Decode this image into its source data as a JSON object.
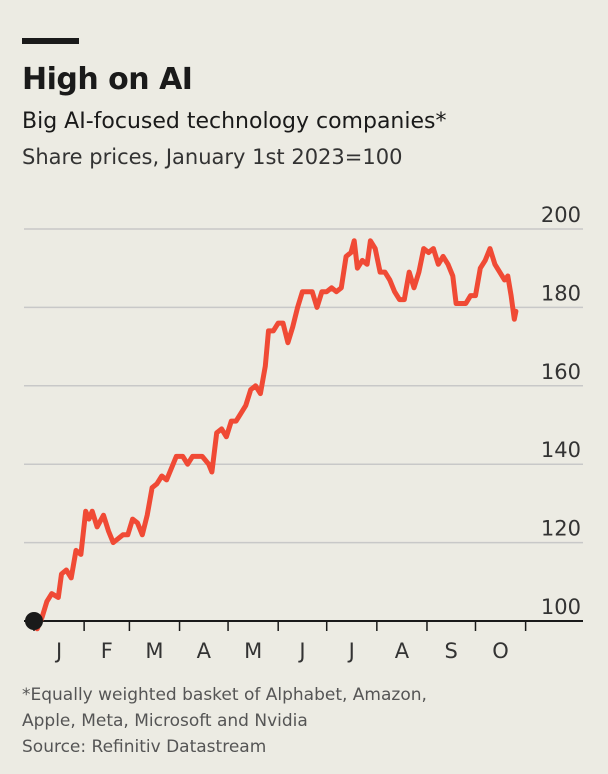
{
  "header": {
    "title": "High on AI",
    "subtitle": "Big AI-focused technology companies*",
    "unit": "Share prices, January 1st 2023=100"
  },
  "colors": {
    "background": "#ecebe3",
    "line": "#f04a35",
    "grid": "#c8c8c8",
    "axis": "#1a1a1a",
    "start_marker": "#1a1a1a"
  },
  "chart_data": {
    "type": "line",
    "title": "High on AI",
    "subtitle": "Big AI-focused technology companies*",
    "ylabel": "Share prices, January 1st 2023=100",
    "xlabel": "",
    "ylim": [
      100,
      200
    ],
    "yticks": [
      100,
      120,
      140,
      160,
      180,
      200
    ],
    "y_axis_side": "right",
    "grid": true,
    "x_range": [
      "2023-01-01",
      "2023-10-31"
    ],
    "xticks": [
      "J",
      "F",
      "M",
      "A",
      "M",
      "J",
      "J",
      "A",
      "S",
      "O"
    ],
    "series": [
      {
        "color": "#f04a35",
        "points": [
          [
            "2023-01-01",
            100
          ],
          [
            "2023-01-03",
            98
          ],
          [
            "2023-01-06",
            101
          ],
          [
            "2023-01-09",
            105
          ],
          [
            "2023-01-12",
            107
          ],
          [
            "2023-01-16",
            106
          ],
          [
            "2023-01-18",
            112
          ],
          [
            "2023-01-21",
            113
          ],
          [
            "2023-01-24",
            111
          ],
          [
            "2023-01-27",
            118
          ],
          [
            "2023-01-30",
            117
          ],
          [
            "2023-02-02",
            128
          ],
          [
            "2023-02-04",
            126
          ],
          [
            "2023-02-06",
            128
          ],
          [
            "2023-02-09",
            124
          ],
          [
            "2023-02-13",
            127
          ],
          [
            "2023-02-16",
            123
          ],
          [
            "2023-02-19",
            120
          ],
          [
            "2023-02-22",
            121
          ],
          [
            "2023-02-25",
            122
          ],
          [
            "2023-02-28",
            122
          ],
          [
            "2023-03-03",
            126
          ],
          [
            "2023-03-06",
            125
          ],
          [
            "2023-03-09",
            122
          ],
          [
            "2023-03-12",
            127
          ],
          [
            "2023-03-15",
            134
          ],
          [
            "2023-03-18",
            135
          ],
          [
            "2023-03-21",
            137
          ],
          [
            "2023-03-24",
            136
          ],
          [
            "2023-03-27",
            139
          ],
          [
            "2023-03-30",
            142
          ],
          [
            "2023-04-03",
            142
          ],
          [
            "2023-04-06",
            140
          ],
          [
            "2023-04-09",
            142
          ],
          [
            "2023-04-12",
            142
          ],
          [
            "2023-04-15",
            142
          ],
          [
            "2023-04-19",
            140
          ],
          [
            "2023-04-21",
            138
          ],
          [
            "2023-04-24",
            148
          ],
          [
            "2023-04-27",
            149
          ],
          [
            "2023-04-30",
            147
          ],
          [
            "2023-05-03",
            151
          ],
          [
            "2023-05-06",
            151
          ],
          [
            "2023-05-09",
            153
          ],
          [
            "2023-05-12",
            155
          ],
          [
            "2023-05-15",
            159
          ],
          [
            "2023-05-18",
            160
          ],
          [
            "2023-05-21",
            158
          ],
          [
            "2023-05-24",
            165
          ],
          [
            "2023-05-26",
            174
          ],
          [
            "2023-05-29",
            174
          ],
          [
            "2023-06-01",
            176
          ],
          [
            "2023-06-04",
            176
          ],
          [
            "2023-06-07",
            171
          ],
          [
            "2023-06-10",
            175
          ],
          [
            "2023-06-13",
            180
          ],
          [
            "2023-06-16",
            184
          ],
          [
            "2023-06-19",
            184
          ],
          [
            "2023-06-22",
            184
          ],
          [
            "2023-06-25",
            180
          ],
          [
            "2023-06-28",
            184
          ],
          [
            "2023-07-01",
            184
          ],
          [
            "2023-07-04",
            185
          ],
          [
            "2023-07-07",
            184
          ],
          [
            "2023-07-10",
            185
          ],
          [
            "2023-07-13",
            193
          ],
          [
            "2023-07-16",
            194
          ],
          [
            "2023-07-18",
            197
          ],
          [
            "2023-07-20",
            190
          ],
          [
            "2023-07-23",
            192
          ],
          [
            "2023-07-26",
            191
          ],
          [
            "2023-07-28",
            197
          ],
          [
            "2023-07-31",
            195
          ],
          [
            "2023-08-03",
            189
          ],
          [
            "2023-08-06",
            189
          ],
          [
            "2023-08-09",
            187
          ],
          [
            "2023-08-12",
            184
          ],
          [
            "2023-08-15",
            182
          ],
          [
            "2023-08-18",
            182
          ],
          [
            "2023-08-21",
            189
          ],
          [
            "2023-08-24",
            185
          ],
          [
            "2023-08-27",
            189
          ],
          [
            "2023-08-30",
            195
          ],
          [
            "2023-09-02",
            194
          ],
          [
            "2023-09-05",
            195
          ],
          [
            "2023-09-08",
            191
          ],
          [
            "2023-09-11",
            193
          ],
          [
            "2023-09-14",
            191
          ],
          [
            "2023-09-17",
            188
          ],
          [
            "2023-09-19",
            181
          ],
          [
            "2023-09-22",
            181
          ],
          [
            "2023-09-25",
            181
          ],
          [
            "2023-09-28",
            183
          ],
          [
            "2023-10-01",
            183
          ],
          [
            "2023-10-04",
            190
          ],
          [
            "2023-10-07",
            192
          ],
          [
            "2023-10-10",
            195
          ],
          [
            "2023-10-13",
            191
          ],
          [
            "2023-10-16",
            189
          ],
          [
            "2023-10-19",
            187
          ],
          [
            "2023-10-21",
            188
          ],
          [
            "2023-10-23",
            183
          ],
          [
            "2023-10-25",
            177
          ],
          [
            "2023-10-26",
            179
          ]
        ]
      }
    ]
  },
  "footnote": {
    "line1": "*Equally weighted basket of Alphabet, Amazon,",
    "line2": "Apple, Meta, Microsoft and Nvidia",
    "source": "Source: Refinitiv Datastream"
  }
}
